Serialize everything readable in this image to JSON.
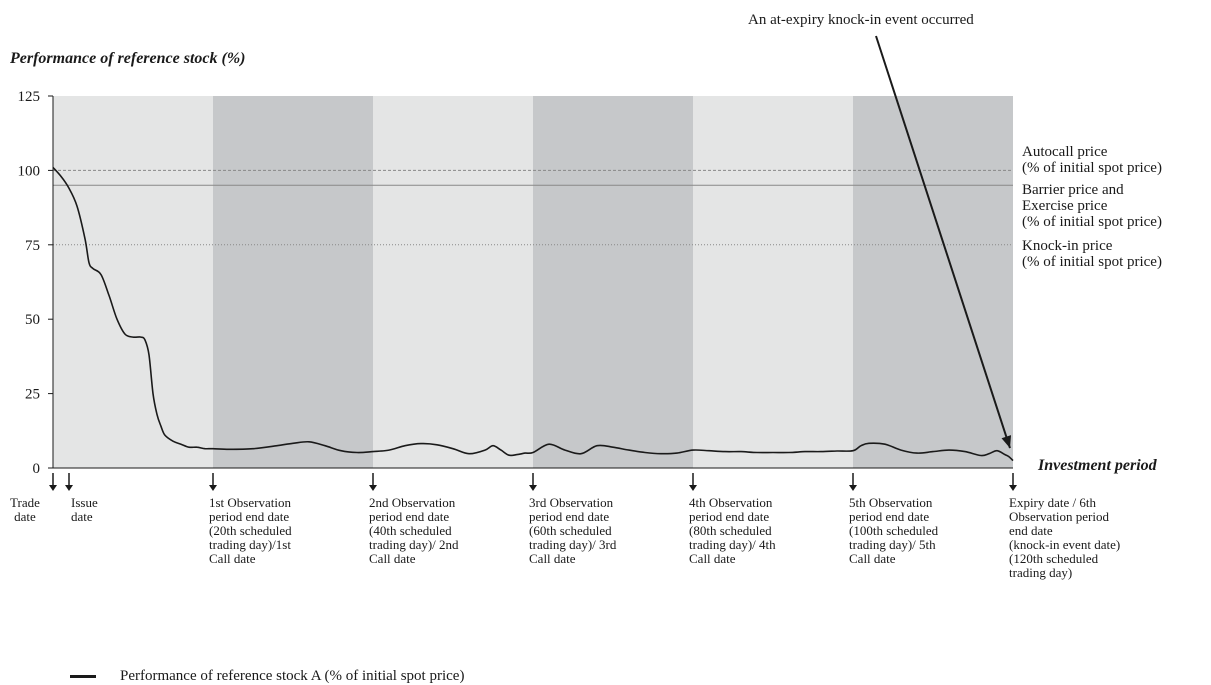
{
  "chart_data": {
    "type": "line",
    "title": "",
    "ylabel": "Performance of reference stock (%)",
    "xlabel": "Investment period",
    "ylim": [
      0,
      125
    ],
    "xlim": [
      0,
      120
    ],
    "yticks": [
      0,
      25,
      50,
      75,
      100,
      125
    ],
    "grid": false,
    "legend_position": "bottom-left",
    "colors": {
      "line": "#1a1a1a",
      "band_light": "#e4e5e5",
      "band_dark": "#c6c8ca",
      "reference_line": "#888888"
    },
    "bands": [
      {
        "from": 0,
        "to": 20,
        "shade": "light"
      },
      {
        "from": 20,
        "to": 40,
        "shade": "dark"
      },
      {
        "from": 40,
        "to": 60,
        "shade": "light"
      },
      {
        "from": 60,
        "to": 80,
        "shade": "dark"
      },
      {
        "from": 80,
        "to": 100,
        "shade": "light"
      },
      {
        "from": 100,
        "to": 120,
        "shade": "dark"
      }
    ],
    "reference_lines": [
      {
        "y": 100,
        "label_lines": [
          "Autocall price",
          "(% of initial spot price)"
        ],
        "style": "dashed"
      },
      {
        "y": 95,
        "label_lines": [
          "Barrier price and",
          "Exercise price",
          "(% of initial spot price)"
        ],
        "style": "solid"
      },
      {
        "y": 75,
        "label_lines": [
          "Knock-in price",
          "(% of initial spot price)"
        ],
        "style": "dotted"
      }
    ],
    "events": [
      {
        "x": 0,
        "label_lines": [
          "Trade",
          "date"
        ]
      },
      {
        "x": 2,
        "label_lines": [
          "Issue",
          "date"
        ]
      },
      {
        "x": 20,
        "label_lines": [
          "1st Observation",
          "period end date",
          "(20th scheduled",
          "trading day)/1st",
          "Call date"
        ]
      },
      {
        "x": 40,
        "label_lines": [
          "2nd Observation",
          "period end date",
          "(40th scheduled",
          "trading day)/ 2nd",
          "Call date"
        ]
      },
      {
        "x": 60,
        "label_lines": [
          "3rd Observation",
          "period end date",
          "(60th scheduled",
          "trading day)/ 3rd",
          "Call date"
        ]
      },
      {
        "x": 80,
        "label_lines": [
          "4th Observation",
          "period end date",
          "(80th scheduled",
          "trading day)/ 4th",
          "Call date"
        ]
      },
      {
        "x": 100,
        "label_lines": [
          "5th Observation",
          "period end date",
          "(100th scheduled",
          "trading day)/ 5th",
          "Call date"
        ]
      },
      {
        "x": 120,
        "label_lines": [
          "Expiry date / 6th",
          "Observation period",
          "end date",
          "(knock-in event date)",
          "(120th scheduled",
          "trading day)"
        ]
      }
    ],
    "annotation": {
      "text": "An at-expiry knock-in event occurred",
      "points_to_x": 120,
      "points_to_y": 4
    },
    "series": [
      {
        "name": "Performance of reference stock A (% of initial spot price)",
        "x": [
          0,
          1,
          2,
          3,
          4,
          4.5,
          5,
          6,
          7,
          8,
          9,
          10,
          11,
          11.5,
          12,
          12.5,
          13,
          13.5,
          14,
          15,
          16,
          17,
          18,
          19,
          20,
          22,
          25,
          28,
          30,
          32,
          34,
          36,
          38,
          40,
          42,
          44,
          46,
          48,
          50,
          52,
          54,
          55,
          56,
          57,
          58,
          59,
          60,
          62,
          64,
          66,
          68,
          70,
          72,
          74,
          76,
          78,
          80,
          82,
          84,
          86,
          88,
          90,
          92,
          94,
          96,
          98,
          100,
          101,
          102,
          104,
          106,
          108,
          110,
          112,
          114,
          116,
          117,
          118,
          119,
          119.5,
          120
        ],
        "values": [
          101,
          98,
          94,
          88,
          77,
          69,
          67,
          65,
          58,
          50,
          45,
          44,
          44,
          43,
          38,
          25,
          18,
          14,
          11,
          9,
          8,
          7,
          7,
          6.5,
          6.5,
          6.3,
          6.5,
          7.5,
          8.3,
          8.8,
          7.5,
          5.8,
          5.2,
          5.5,
          6,
          7.5,
          8.2,
          7.8,
          6.5,
          4.8,
          6,
          7.5,
          6,
          4.3,
          4.5,
          5,
          5.2,
          8,
          6,
          4.8,
          7.5,
          7,
          6,
          5.2,
          4.8,
          5,
          6,
          5.8,
          5.5,
          5.5,
          5.2,
          5.2,
          5.2,
          5.5,
          5.5,
          5.7,
          5.8,
          7.5,
          8.3,
          8,
          6,
          5,
          5.5,
          6,
          5.5,
          4.2,
          4.8,
          5.8,
          4.5,
          3.8,
          2.5
        ]
      }
    ]
  }
}
